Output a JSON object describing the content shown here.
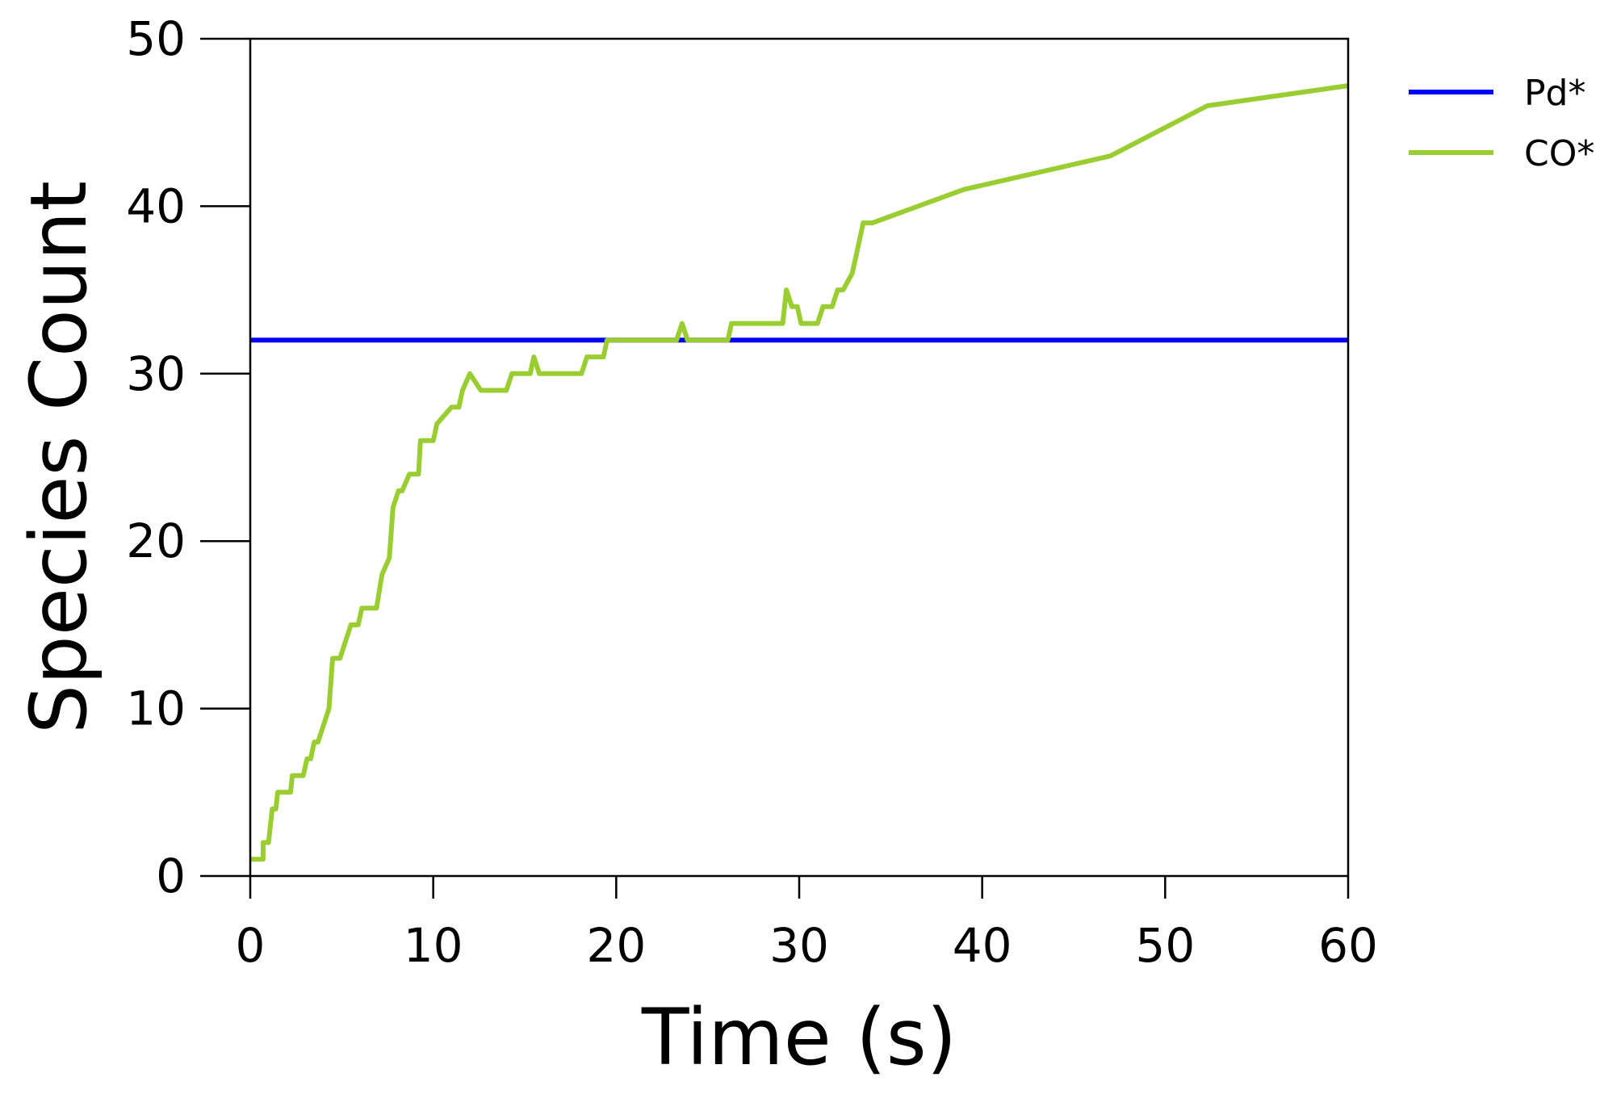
{
  "chart_data": {
    "type": "line",
    "title": "",
    "xlabel": "Time (s)",
    "ylabel": "Species Count",
    "xlim": [
      0,
      60
    ],
    "ylim": [
      0,
      50
    ],
    "xticks": [
      0,
      10,
      20,
      30,
      40,
      50,
      60
    ],
    "yticks": [
      0,
      10,
      20,
      30,
      40,
      50
    ],
    "grid": false,
    "legend_position": "top-right outside",
    "series": [
      {
        "name": "Pd*",
        "color": "#0000ff",
        "x": [
          0,
          60
        ],
        "y": [
          32,
          32
        ]
      },
      {
        "name": "CO*",
        "color": "#9acd32",
        "x": [
          0,
          0.7,
          0.7,
          1.0,
          1.1,
          1.2,
          1.4,
          1.5,
          2.2,
          2.3,
          2.9,
          3.1,
          3.3,
          3.5,
          3.7,
          4.3,
          4.5,
          4.8,
          4.9,
          5.2,
          5.5,
          5.9,
          6.1,
          6.3,
          6.6,
          6.9,
          7.2,
          7.6,
          7.8,
          8.1,
          8.3,
          8.7,
          9.2,
          9.3,
          9.5,
          10.0,
          10.2,
          11.0,
          11.4,
          11.6,
          12.0,
          12.6,
          14.0,
          14.3,
          15.3,
          15.5,
          15.8,
          16.4,
          18.1,
          18.4,
          19.3,
          19.5,
          20.0,
          23.3,
          23.6,
          23.9,
          24.2,
          26.1,
          26.3,
          29.1,
          29.3,
          29.6,
          29.9,
          30.1,
          31.0,
          31.3,
          31.8,
          32.1,
          32.4,
          32.9,
          33.1,
          33.3,
          33.5,
          34.0,
          39.0,
          47.0,
          52.3,
          60.0
        ],
        "y": [
          1,
          1,
          2,
          2,
          3,
          4,
          4,
          5,
          5,
          6,
          6,
          7,
          7,
          8,
          8,
          10,
          13,
          13,
          13,
          14,
          15,
          15,
          16,
          16,
          16,
          16,
          18,
          19,
          22,
          23,
          23,
          24,
          24,
          26,
          26,
          26,
          27,
          28,
          28,
          29,
          30,
          29,
          29,
          30,
          30,
          31,
          30,
          30,
          30,
          31,
          31,
          32,
          32,
          32,
          33,
          32,
          32,
          32,
          33,
          33,
          35,
          34,
          34,
          33,
          33,
          34,
          34,
          35,
          35,
          36,
          37,
          38,
          39,
          39,
          41,
          43,
          46,
          47.2
        ]
      }
    ]
  }
}
